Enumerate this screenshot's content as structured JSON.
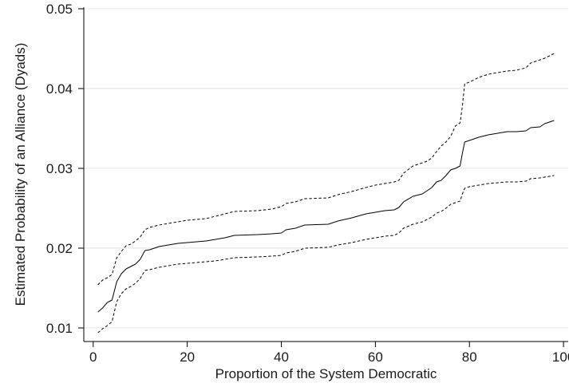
{
  "chart_data": {
    "type": "line",
    "title": "",
    "xlabel": "Proportion of the System Democratic",
    "ylabel": "Estimated Probability of an Alliance (Dyads)",
    "xlim": [
      -2,
      101
    ],
    "ylim": [
      0.0083,
      0.0502
    ],
    "xticks": [
      0,
      20,
      40,
      60,
      80,
      100
    ],
    "yticks": [
      0.01,
      0.02,
      0.03,
      0.04,
      0.05
    ],
    "xtick_labels": [
      "0",
      "20",
      "40",
      "60",
      "80",
      "100"
    ],
    "ytick_labels": [
      "0.01",
      "0.02",
      "0.03",
      "0.04",
      "0.05"
    ],
    "grid": "horizontal",
    "legend": "none",
    "series": [
      {
        "style": "solid",
        "color": "#000000",
        "x": [
          1,
          2,
          3,
          4,
          5,
          6,
          7,
          8,
          9,
          10,
          11,
          12,
          14,
          16,
          18,
          20,
          22,
          24,
          26,
          28,
          30,
          35,
          38,
          40,
          41,
          43,
          45,
          50,
          52,
          55,
          58,
          60,
          62,
          64,
          65,
          66,
          68,
          70,
          71,
          72,
          73,
          74,
          75,
          76,
          77,
          78,
          78.5,
          79,
          80,
          82,
          84,
          86,
          88,
          90,
          92,
          93,
          95,
          96,
          98
        ],
        "y": [
          0.012,
          0.0125,
          0.0132,
          0.0135,
          0.0158,
          0.0168,
          0.0174,
          0.0177,
          0.018,
          0.0186,
          0.0197,
          0.0198,
          0.0202,
          0.0204,
          0.0206,
          0.0207,
          0.0208,
          0.0209,
          0.0211,
          0.0213,
          0.0216,
          0.0217,
          0.0218,
          0.0219,
          0.0223,
          0.0225,
          0.0229,
          0.023,
          0.0234,
          0.0238,
          0.0243,
          0.0245,
          0.0247,
          0.0248,
          0.0251,
          0.0258,
          0.0265,
          0.0268,
          0.0272,
          0.0276,
          0.0283,
          0.0285,
          0.0291,
          0.0298,
          0.03,
          0.0303,
          0.0319,
          0.0333,
          0.0335,
          0.0339,
          0.0342,
          0.0344,
          0.0346,
          0.0346,
          0.0347,
          0.0351,
          0.0352,
          0.0356,
          0.036
        ]
      },
      {
        "style": "dashed",
        "color": "#000000",
        "x": [
          1,
          2,
          3,
          4,
          5,
          6,
          7,
          8,
          9,
          10,
          11,
          12,
          14,
          16,
          18,
          20,
          22,
          24,
          26,
          28,
          30,
          35,
          38,
          40,
          41,
          43,
          45,
          50,
          52,
          55,
          58,
          60,
          62,
          64,
          65,
          66,
          68,
          70,
          71,
          72,
          73,
          74,
          75,
          76,
          77,
          78,
          78.5,
          79,
          80,
          82,
          84,
          86,
          88,
          90,
          92,
          93,
          95,
          96,
          98
        ],
        "y": [
          0.0154,
          0.016,
          0.0163,
          0.0167,
          0.0188,
          0.0196,
          0.0203,
          0.0205,
          0.0209,
          0.0214,
          0.0223,
          0.0226,
          0.0229,
          0.0231,
          0.0233,
          0.0235,
          0.0236,
          0.0237,
          0.024,
          0.0243,
          0.0246,
          0.0247,
          0.0249,
          0.0252,
          0.0256,
          0.0258,
          0.0262,
          0.0263,
          0.0267,
          0.0271,
          0.0276,
          0.0279,
          0.0281,
          0.0283,
          0.0285,
          0.0294,
          0.0303,
          0.0307,
          0.0309,
          0.0313,
          0.0321,
          0.0328,
          0.0333,
          0.034,
          0.0353,
          0.0357,
          0.0378,
          0.0406,
          0.0408,
          0.0414,
          0.0418,
          0.042,
          0.0422,
          0.0423,
          0.0426,
          0.0432,
          0.0436,
          0.0438,
          0.0444
        ]
      },
      {
        "style": "dashed",
        "color": "#000000",
        "x": [
          1,
          2,
          3,
          4,
          5,
          6,
          7,
          8,
          9,
          10,
          11,
          12,
          14,
          16,
          18,
          20,
          22,
          24,
          26,
          28,
          30,
          35,
          38,
          40,
          41,
          43,
          45,
          50,
          52,
          55,
          58,
          60,
          62,
          64,
          65,
          66,
          68,
          70,
          71,
          72,
          73,
          74,
          75,
          76,
          77,
          78,
          78.5,
          79,
          80,
          82,
          84,
          86,
          88,
          90,
          92,
          93,
          95,
          96,
          98
        ],
        "y": [
          0.0094,
          0.0099,
          0.0103,
          0.0108,
          0.0133,
          0.0143,
          0.0149,
          0.0152,
          0.0156,
          0.0162,
          0.0172,
          0.0173,
          0.0176,
          0.0178,
          0.018,
          0.0181,
          0.0182,
          0.0183,
          0.0184,
          0.0186,
          0.0188,
          0.0189,
          0.019,
          0.0191,
          0.0194,
          0.0196,
          0.02,
          0.0201,
          0.0204,
          0.0207,
          0.0211,
          0.0213,
          0.0215,
          0.0216,
          0.0219,
          0.0225,
          0.023,
          0.0233,
          0.0236,
          0.0239,
          0.0244,
          0.0246,
          0.025,
          0.0255,
          0.0257,
          0.0259,
          0.0268,
          0.0275,
          0.0277,
          0.0279,
          0.0281,
          0.0282,
          0.0283,
          0.0283,
          0.0284,
          0.0287,
          0.0288,
          0.0289,
          0.0291
        ]
      }
    ]
  }
}
